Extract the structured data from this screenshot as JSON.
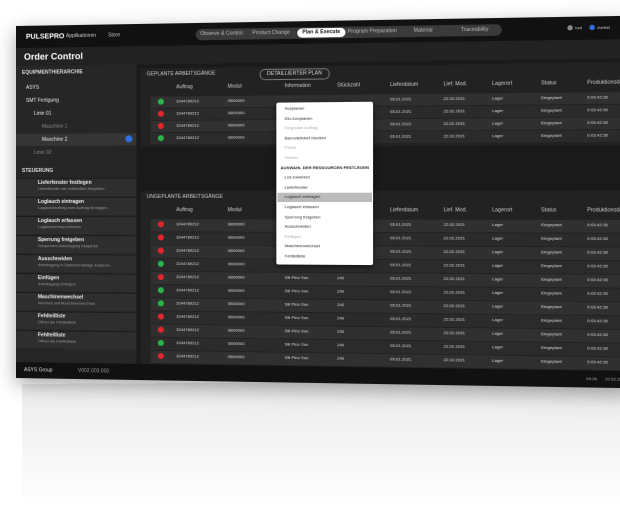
{
  "header": {
    "logo": "PULSEPRO",
    "links": [
      "Applikationen",
      "Store"
    ],
    "tabs": [
      "Observe & Control",
      "Product Change",
      "Plan & Execute",
      "Program Preparation",
      "Material",
      "Traceability"
    ],
    "active_tab": 2,
    "themes": [
      "hell",
      "dunkel"
    ]
  },
  "title": "Order Control",
  "sidebar": {
    "hierarchy_title": "EQUIPMENTHIERARCHIE",
    "tree": [
      "ASYS",
      "SMT Fertigung",
      "Linie 01",
      "Maschine 1",
      "Maschine 2",
      "Linie 02"
    ],
    "control_title": "STEUERUNG",
    "controls": [
      [
        "Lieferfenster festlegen",
        "Lieferfenster als verbindlich freigeben"
      ],
      [
        "Loglauch eintragen",
        "Loglauchauftrag zum Auftrag eintragen"
      ],
      [
        "Loglauch erfassen",
        "Loglauchertrag erfassen"
      ],
      [
        "Sperrung freigeben",
        "Gesperrten Arbeitsgang freigeben"
      ],
      [
        "Ausschneiden",
        "Arbeitsgang in Zwischenablage kopieren"
      ],
      [
        "Einfügen",
        "Arbeitsgang einfügen"
      ],
      [
        "Maschinenwechsel",
        "Wechsel auf Maschinenwechsel"
      ],
      [
        "Fehlteilliste",
        "Öffnet die Fehlteilliste"
      ],
      [
        "Fehlteilliste",
        "Öffnet die Fehlteilliste"
      ]
    ]
  },
  "columns": [
    "Auftrag",
    "Modul",
    "Information",
    "Stückzahl",
    "Lieferdatum",
    "Lief. Mod.",
    "Lagerort",
    "Status",
    "Produktionsdauer"
  ],
  "planned": {
    "title": "GEPLANTE ARBEITSGÄNGE",
    "button": "DETAILLIERTER PLAN",
    "rows": [
      [
        "#2bb24c",
        "3244789212",
        "SB00000",
        null,
        null,
        "05.01.2021",
        "22.02.2021",
        "Lager",
        "Eingeplant",
        "0:03:42:30"
      ],
      [
        "#e0262b",
        "3244789212",
        "SB00000",
        null,
        null,
        "05.01.2021",
        "22.02.2021",
        "Lager",
        "Eingeplant",
        "0:03:42:30"
      ],
      [
        "#e0262b",
        "3244789212",
        "SB00000",
        null,
        null,
        "05.01.2021",
        "22.02.2021",
        "Lager",
        "Eingeplant",
        "0:03:42:30"
      ],
      [
        "#2bb24c",
        "3244789212",
        "SB00000",
        null,
        null,
        "05.01.2021",
        "22.02.2021",
        "Lager",
        "Eingeplant",
        "0:03:42:30"
      ]
    ]
  },
  "unplanned": {
    "title": "UNGEPLANTE ARBEITSGÄNGE",
    "rows": [
      [
        "#e0262b",
        "3244789212",
        "SB00000",
        null,
        null,
        "05.01.2021",
        "22.02.2021",
        "Lager",
        "Eingeplant",
        "0:03:42:30"
      ],
      [
        "#e0262b",
        "3244789212",
        "SB00000",
        null,
        null,
        "05.01.2021",
        "22.02.2021",
        "Lager",
        "Eingeplant",
        "0:03:42:30"
      ],
      [
        "#e0262b",
        "3244789212",
        "SB00000",
        null,
        null,
        "05.01.2021",
        "22.02.2021",
        "Lager",
        "Eingeplant",
        "0:03:42:30"
      ],
      [
        "#2bb24c",
        "3244789212",
        "SB00000",
        null,
        null,
        "05.01.2021",
        "22.02.2021",
        "Lager",
        "Eingeplant",
        "0:03:42:30"
      ],
      [
        "#e0262b",
        "3244789212",
        "SB00000",
        "SB Pino Sun",
        "240",
        "05.01.2021",
        "22.02.2021",
        "Lager",
        "Eingeplant",
        "0:03:42:30"
      ],
      [
        "#2bb24c",
        "3244789212",
        "SB00000",
        "SB Pino Sun",
        "240",
        "05.01.2021",
        "22.02.2021",
        "Lager",
        "Eingeplant",
        "0:03:42:30"
      ],
      [
        "#2bb24c",
        "3244789212",
        "SB00000",
        "SB Pino Sun",
        "240",
        "05.01.2021",
        "22.02.2021",
        "Lager",
        "Eingeplant",
        "0:03:42:30"
      ],
      [
        "#e0262b",
        "3244789212",
        "SB00000",
        "SB Pino Sun",
        "240",
        "05.01.2021",
        "22.02.2021",
        "Lager",
        "Eingeplant",
        "0:03:42:30"
      ],
      [
        "#e0262b",
        "3244789212",
        "SB00000",
        "SB Pino Sun",
        "240",
        "05.01.2021",
        "22.02.2021",
        "Lager",
        "Eingeplant",
        "0:03:42:30"
      ],
      [
        "#2bb24c",
        "3244789212",
        "SB00000",
        "SB Pino Sun",
        "240",
        "05.01.2021",
        "22.02.2021",
        "Lager",
        "Eingeplant",
        "0:03:42:30"
      ],
      [
        "#e0262b",
        "3244789212",
        "SB00000",
        "SB Pino Sun",
        "240",
        "05.01.2021",
        "22.02.2021",
        "Lager",
        "Eingeplant",
        "0:03:42:30"
      ]
    ]
  },
  "context_menu": {
    "items": [
      "Ausplanen",
      "Ein-/Umplanen",
      "Eingeplan Auftrag",
      "Barcodeticket drucken",
      "Pause",
      "Starten",
      "AUSWAHL DER RESSOURCEN FESTLEGEN",
      "Los zuweisen",
      "Lieferfenster",
      "Loglauch eintragen",
      "Loglauch erfassen",
      "Sperrung freigeben",
      "Ausschneiden",
      "Einfügen",
      "Maschinenwechsel",
      "Fehlteilliste"
    ],
    "disabled": [
      2,
      4,
      5,
      13
    ],
    "heading": 6,
    "highlighted": 9
  },
  "footer": {
    "company": "ASYS Group",
    "version": "V002.003.000",
    "time": "09:36",
    "date": "10.02.2020"
  }
}
